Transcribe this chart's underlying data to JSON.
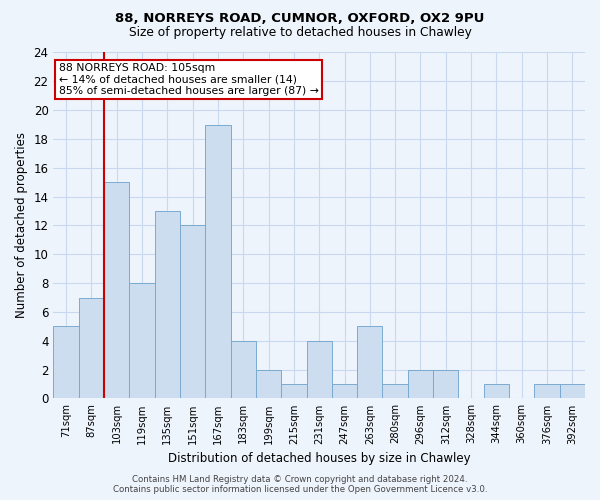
{
  "title1": "88, NORREYS ROAD, CUMNOR, OXFORD, OX2 9PU",
  "title2": "Size of property relative to detached houses in Chawley",
  "xlabel": "Distribution of detached houses by size in Chawley",
  "ylabel": "Number of detached properties",
  "bar_labels": [
    "71sqm",
    "87sqm",
    "103sqm",
    "119sqm",
    "135sqm",
    "151sqm",
    "167sqm",
    "183sqm",
    "199sqm",
    "215sqm",
    "231sqm",
    "247sqm",
    "263sqm",
    "280sqm",
    "296sqm",
    "312sqm",
    "328sqm",
    "344sqm",
    "360sqm",
    "376sqm",
    "392sqm"
  ],
  "bar_values": [
    5,
    7,
    15,
    8,
    13,
    12,
    19,
    4,
    2,
    1,
    4,
    1,
    5,
    1,
    2,
    2,
    0,
    1,
    0,
    1,
    1
  ],
  "bar_color": "#ccddf0",
  "bar_edge_color": "#7aaad0",
  "annotation_title": "88 NORREYS ROAD: 105sqm",
  "annotation_line1": "← 14% of detached houses are smaller (14)",
  "annotation_line2": "85% of semi-detached houses are larger (87) →",
  "annotation_box_color": "#ffffff",
  "annotation_border_color": "#cc0000",
  "vline_color": "#cc0000",
  "ylim": [
    0,
    24
  ],
  "yticks": [
    0,
    2,
    4,
    6,
    8,
    10,
    12,
    14,
    16,
    18,
    20,
    22,
    24
  ],
  "grid_color": "#c8d8ee",
  "bg_color": "#eef4fc",
  "footer1": "Contains HM Land Registry data © Crown copyright and database right 2024.",
  "footer2": "Contains public sector information licensed under the Open Government Licence v3.0."
}
